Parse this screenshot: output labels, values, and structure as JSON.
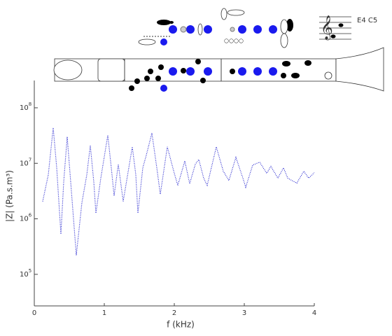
{
  "diagram": {
    "notes": "E4  C5"
  },
  "chart_data": {
    "type": "line",
    "log_y": true,
    "xlabel": "f (kHz)",
    "ylabel": "|Z| (Pa.s.m³)",
    "xlim": [
      0,
      4
    ],
    "xticks": [
      0,
      1,
      2,
      3,
      4
    ],
    "ylim": [
      27000,
      310000000
    ],
    "yticks": [
      {
        "value": 100000,
        "label": "10",
        "exponent": "5"
      },
      {
        "value": 1000000,
        "label": "10",
        "exponent": "6"
      },
      {
        "value": 10000000,
        "label": "10",
        "exponent": "7"
      },
      {
        "value": 100000000,
        "label": "10",
        "exponent": "8"
      }
    ],
    "series": [
      {
        "color": "#1a1acc",
        "x": [
          0.12,
          0.2,
          0.27,
          0.32,
          0.38,
          0.42,
          0.47,
          0.52,
          0.6,
          0.68,
          0.75,
          0.8,
          0.85,
          0.88,
          0.95,
          1.05,
          1.1,
          1.14,
          1.2,
          1.27,
          1.35,
          1.4,
          1.45,
          1.48,
          1.55,
          1.6,
          1.68,
          1.75,
          1.8,
          1.9,
          2.0,
          2.05,
          2.15,
          2.22,
          2.3,
          2.35,
          2.42,
          2.47,
          2.6,
          2.7,
          2.78,
          2.88,
          2.98,
          3.02,
          3.12,
          3.22,
          3.32,
          3.38,
          3.48,
          3.56,
          3.62,
          3.75,
          3.85,
          3.92,
          4.0
        ],
        "values": [
          2060000,
          6200000,
          44000000,
          8300000,
          530000,
          4600000,
          30000000,
          4600000,
          220000,
          1950000,
          6200000,
          21000000,
          4600000,
          1260000,
          5400000,
          32000000,
          8300000,
          2600000,
          9600000,
          2060000,
          8300000,
          19800000,
          6200000,
          1260000,
          8300000,
          14000000,
          35000000,
          8300000,
          2750000,
          19800000,
          6600000,
          4000000,
          11000000,
          4300000,
          9600000,
          11700000,
          5400000,
          4000000,
          19800000,
          7200000,
          4900000,
          12800000,
          5400000,
          3700000,
          9300000,
          10500000,
          6600000,
          8800000,
          5400000,
          8300000,
          5400000,
          4400000,
          7200000,
          5400000,
          6800000
        ]
      }
    ]
  }
}
